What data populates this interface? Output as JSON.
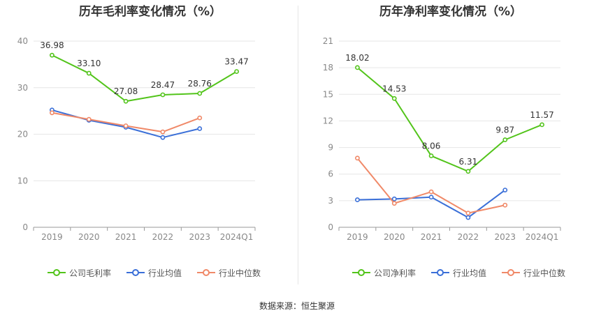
{
  "left_title": "历年毛利率变化情况（%）",
  "right_title": "历年净利率变化情况（%）",
  "source_text": "数据来源：恒生聚源",
  "colors": {
    "company": "#52c41a",
    "industry_avg": "#3a6fd8",
    "industry_median": "#f08968",
    "grid": "#e6e6e6",
    "axis": "#999999",
    "tick_text": "#888888",
    "label_text": "#333333"
  },
  "chart_data": [
    {
      "type": "line",
      "title": "历年毛利率变化情况（%）",
      "categories": [
        "2019",
        "2020",
        "2021",
        "2022",
        "2023",
        "2024Q1"
      ],
      "ylim": [
        0,
        40
      ],
      "yticks": [
        0,
        10,
        20,
        30,
        40
      ],
      "grid": true,
      "legend_position": "bottom",
      "series": [
        {
          "name": "公司毛利率",
          "color": "#52c41a",
          "labeled": true,
          "values": [
            36.98,
            33.1,
            27.08,
            28.47,
            28.76,
            33.47
          ],
          "labels": [
            "36.98",
            "33.10",
            "27.08",
            "28.47",
            "28.76",
            "33.47"
          ]
        },
        {
          "name": "行业均值",
          "color": "#3a6fd8",
          "labeled": false,
          "values": [
            25.2,
            23.0,
            21.5,
            19.3,
            21.2,
            null
          ]
        },
        {
          "name": "行业中位数",
          "color": "#f08968",
          "labeled": false,
          "values": [
            24.6,
            23.2,
            21.8,
            20.5,
            23.5,
            null
          ]
        }
      ]
    },
    {
      "type": "line",
      "title": "历年净利率变化情况（%）",
      "categories": [
        "2019",
        "2020",
        "2021",
        "2022",
        "2023",
        "2024Q1"
      ],
      "ylim": [
        0,
        21
      ],
      "yticks": [
        0,
        3,
        6,
        9,
        12,
        15,
        18,
        21
      ],
      "grid": true,
      "legend_position": "bottom",
      "series": [
        {
          "name": "公司净利率",
          "color": "#52c41a",
          "labeled": true,
          "values": [
            18.02,
            14.53,
            8.06,
            6.31,
            9.87,
            11.57
          ],
          "labels": [
            "18.02",
            "14.53",
            "8.06",
            "6.31",
            "9.87",
            "11.57"
          ]
        },
        {
          "name": "行业均值",
          "color": "#3a6fd8",
          "labeled": false,
          "values": [
            3.1,
            3.2,
            3.4,
            1.1,
            4.2,
            null
          ]
        },
        {
          "name": "行业中位数",
          "color": "#f08968",
          "labeled": false,
          "values": [
            7.8,
            2.7,
            4.0,
            1.6,
            2.5,
            null
          ]
        }
      ]
    }
  ]
}
